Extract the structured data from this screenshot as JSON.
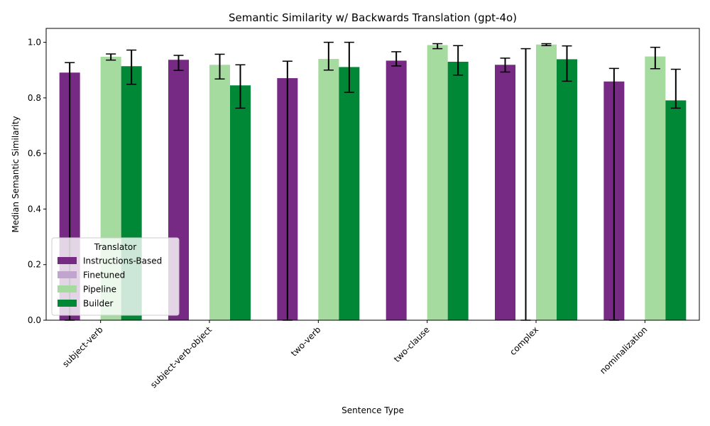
{
  "chart_data": {
    "type": "bar",
    "title": "Semantic Similarity w/ Backwards Translation (gpt-4o)",
    "xlabel": "Sentence Type",
    "ylabel": "Median Semantic Similarity",
    "ylim": [
      0,
      1.05
    ],
    "yticks": [
      "0.0",
      "0.2",
      "0.4",
      "0.6",
      "0.8",
      "1.0"
    ],
    "categories": [
      "subject-verb",
      "subject-verb-object",
      "two-verb",
      "two-clause",
      "complex",
      "nominalization"
    ],
    "legend": {
      "title": "Translator",
      "placement": "lower-left"
    },
    "grid": false,
    "series": [
      {
        "name": "Instructions-Based",
        "color": "#762a83",
        "values": [
          0.891,
          0.937,
          0.871,
          0.934,
          0.919,
          0.859
        ],
        "err_low": [
          0.0,
          0.899,
          0.0,
          0.915,
          0.893,
          0.0
        ],
        "err_high": [
          0.927,
          0.953,
          0.932,
          0.966,
          0.943,
          0.906
        ]
      },
      {
        "name": "Finetuned",
        "color": "#c2a5cf",
        "values": [
          0.0,
          0.0,
          0.0,
          0.0,
          0.0,
          0.0
        ],
        "err_low": [
          null,
          null,
          null,
          null,
          0.0,
          null
        ],
        "err_high": [
          null,
          null,
          null,
          null,
          0.977,
          null
        ]
      },
      {
        "name": "Pipeline",
        "color": "#a6dba0",
        "values": [
          0.948,
          0.919,
          0.94,
          0.99,
          0.992,
          0.949
        ],
        "err_low": [
          0.936,
          0.868,
          0.9,
          0.977,
          0.988,
          0.905
        ],
        "err_high": [
          0.958,
          0.957,
          1.0,
          0.995,
          0.995,
          0.982
        ]
      },
      {
        "name": "Builder",
        "color": "#008837",
        "values": [
          0.914,
          0.845,
          0.911,
          0.93,
          0.939,
          0.791
        ],
        "err_low": [
          0.849,
          0.763,
          0.82,
          0.882,
          0.86,
          0.763
        ],
        "err_high": [
          0.972,
          0.919,
          1.0,
          0.988,
          0.987,
          0.903
        ]
      }
    ]
  }
}
